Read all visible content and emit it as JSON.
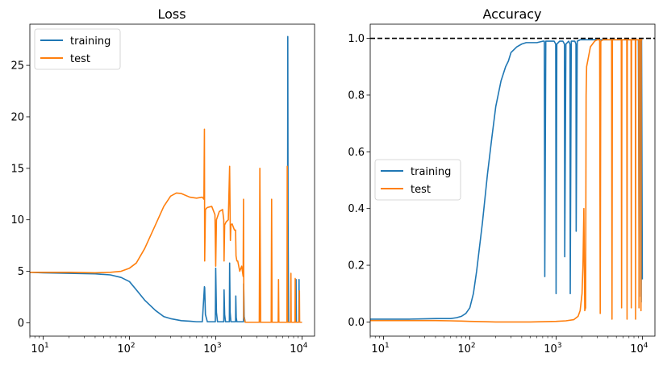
{
  "colors": {
    "training": "#1f77b4",
    "test": "#ff7f0e",
    "reference": "#000000"
  },
  "chart_data": [
    {
      "type": "line",
      "title": "Loss",
      "xscale": "log",
      "xlim": [
        7,
        14000
      ],
      "ylim": [
        -1.3,
        29
      ],
      "grid": false,
      "legend": "top-left",
      "xticks": [
        {
          "value": 10,
          "base": "10",
          "exp": "1"
        },
        {
          "value": 100,
          "base": "10",
          "exp": "2"
        },
        {
          "value": 1000,
          "base": "10",
          "exp": "3"
        },
        {
          "value": 10000,
          "base": "10",
          "exp": "4"
        }
      ],
      "yticks": [
        {
          "value": 0,
          "label": "0"
        },
        {
          "value": 5,
          "label": "5"
        },
        {
          "value": 10,
          "label": "10"
        },
        {
          "value": 15,
          "label": "15"
        },
        {
          "value": 20,
          "label": "20"
        },
        {
          "value": 25,
          "label": "25"
        }
      ],
      "series": [
        {
          "name": "training",
          "color_key": "training",
          "x": [
            7,
            10,
            20,
            40,
            60,
            80,
            100,
            120,
            150,
            200,
            250,
            300,
            400,
            500,
            600,
            700,
            740,
            745,
            760,
            800,
            990,
            1000,
            1020,
            1050,
            1240,
            1250,
            1270,
            1300,
            1440,
            1450,
            1470,
            1500,
            1700,
            1710,
            1730,
            1760,
            2100,
            2110,
            2140,
            2200,
            2500,
            3000,
            4000,
            5000,
            6000,
            6800,
            6850,
            6900,
            7000,
            7500,
            8500,
            8550,
            8600,
            9200,
            9250,
            9300,
            10000
          ],
          "y": [
            4.9,
            4.85,
            4.8,
            4.75,
            4.65,
            4.4,
            4.0,
            3.2,
            2.2,
            1.2,
            0.6,
            0.4,
            0.2,
            0.15,
            0.1,
            0.1,
            3.5,
            3.4,
            0.8,
            0.1,
            0.1,
            5.3,
            1.0,
            0.1,
            0.1,
            3.2,
            0.8,
            0.1,
            0.1,
            5.8,
            1.0,
            0.1,
            0.1,
            2.6,
            0.5,
            0.1,
            0.1,
            3.8,
            0.6,
            0.05,
            0.05,
            0.05,
            0.05,
            0.05,
            0.05,
            0.05,
            27.8,
            10.0,
            0.05,
            0.05,
            0.05,
            4.2,
            0.05,
            0.05,
            4.2,
            0.05,
            0.05
          ]
        },
        {
          "name": "test",
          "color_key": "test",
          "x": [
            7,
            10,
            20,
            40,
            60,
            80,
            100,
            120,
            150,
            200,
            250,
            300,
            350,
            400,
            500,
            600,
            700,
            730,
            740,
            745,
            760,
            800,
            900,
            980,
            1000,
            1020,
            1100,
            1200,
            1240,
            1250,
            1270,
            1320,
            1400,
            1450,
            1480,
            1500,
            1550,
            1650,
            1700,
            1720,
            1760,
            1800,
            1900,
            2000,
            2080,
            2100,
            2120,
            2200,
            2500,
            3000,
            3200,
            3250,
            3320,
            3500,
            4400,
            4450,
            4500,
            4600,
            5300,
            5350,
            5400,
            5800,
            6700,
            6750,
            6800,
            7000,
            7400,
            7450,
            7500,
            8000,
            8300,
            8350,
            8400,
            9000,
            9300,
            9350,
            9400,
            10000
          ],
          "y": [
            4.9,
            4.9,
            4.9,
            4.85,
            4.9,
            5.0,
            5.3,
            5.8,
            7.2,
            9.5,
            11.3,
            12.3,
            12.6,
            12.55,
            12.2,
            12.1,
            12.2,
            12.0,
            18.8,
            6.0,
            11.0,
            11.2,
            11.3,
            10.5,
            5.5,
            10.0,
            10.8,
            11.0,
            10.0,
            6.0,
            9.5,
            9.8,
            10.0,
            15.2,
            8.0,
            9.5,
            9.6,
            9.0,
            9.0,
            6.5,
            6.0,
            6.0,
            5.0,
            5.5,
            4.5,
            12.0,
            0.5,
            0.05,
            0.05,
            0.05,
            0.05,
            15.0,
            0.05,
            0.05,
            0.05,
            12.0,
            0.05,
            0.05,
            0.05,
            4.2,
            0.05,
            0.05,
            0.05,
            15.2,
            0.05,
            0.05,
            0.05,
            4.8,
            0.05,
            0.05,
            0.05,
            4.3,
            0.05,
            0.05,
            0.05,
            3.1,
            0.05,
            0.05
          ]
        }
      ]
    },
    {
      "type": "line",
      "title": "Accuracy",
      "xscale": "log",
      "xlim": [
        7,
        14000
      ],
      "ylim": [
        -0.05,
        1.05
      ],
      "grid": false,
      "legend": "center-left",
      "reference_line": {
        "y": 1.0,
        "style": "dashed"
      },
      "xticks": [
        {
          "value": 10,
          "base": "10",
          "exp": "1"
        },
        {
          "value": 100,
          "base": "10",
          "exp": "2"
        },
        {
          "value": 1000,
          "base": "10",
          "exp": "3"
        },
        {
          "value": 10000,
          "base": "10",
          "exp": "4"
        }
      ],
      "yticks": [
        {
          "value": 0.0,
          "label": "0.0"
        },
        {
          "value": 0.2,
          "label": "0.2"
        },
        {
          "value": 0.4,
          "label": "0.4"
        },
        {
          "value": 0.6,
          "label": "0.6"
        },
        {
          "value": 0.8,
          "label": "0.8"
        },
        {
          "value": 1.0,
          "label": "1.0"
        }
      ],
      "series": [
        {
          "name": "training",
          "color_key": "training",
          "x": [
            7,
            10,
            20,
            40,
            60,
            70,
            80,
            90,
            100,
            110,
            120,
            140,
            160,
            180,
            200,
            230,
            260,
            280,
            300,
            350,
            400,
            450,
            500,
            600,
            700,
            730,
            740,
            760,
            800,
            850,
            950,
            990,
            1000,
            1020,
            1100,
            1200,
            1250,
            1260,
            1300,
            1400,
            1450,
            1460,
            1500,
            1650,
            1700,
            1710,
            1760,
            1900,
            2100,
            2200,
            2500,
            3000,
            4000,
            5000,
            6000,
            7000,
            8000,
            9000,
            9200,
            9300,
            9500,
            9700,
            9800,
            10000
          ],
          "y": [
            0.01,
            0.01,
            0.01,
            0.012,
            0.012,
            0.015,
            0.02,
            0.03,
            0.05,
            0.1,
            0.18,
            0.35,
            0.52,
            0.65,
            0.76,
            0.85,
            0.9,
            0.92,
            0.95,
            0.97,
            0.98,
            0.985,
            0.985,
            0.985,
            0.99,
            0.99,
            0.16,
            0.99,
            0.99,
            0.99,
            0.99,
            0.98,
            0.1,
            0.98,
            0.99,
            0.99,
            0.98,
            0.23,
            0.98,
            0.99,
            0.98,
            0.1,
            0.99,
            0.99,
            0.98,
            0.32,
            0.99,
            0.995,
            0.995,
            0.995,
            0.995,
            0.995,
            0.995,
            0.995,
            0.995,
            0.995,
            0.995,
            0.995,
            0.09,
            0.995,
            0.995,
            0.07,
            0.995,
            0.15
          ]
        },
        {
          "name": "test",
          "color_key": "test",
          "x": [
            7,
            10,
            20,
            40,
            60,
            80,
            100,
            150,
            200,
            300,
            500,
            700,
            1000,
            1300,
            1600,
            1800,
            1900,
            2000,
            2050,
            2100,
            2150,
            2200,
            2230,
            2260,
            2500,
            2800,
            3000,
            3100,
            3200,
            3250,
            3300,
            3500,
            4400,
            4450,
            4500,
            5000,
            5700,
            5750,
            5800,
            6200,
            6600,
            6650,
            6700,
            7000,
            7400,
            7450,
            7500,
            8000,
            8300,
            8350,
            8400,
            8800,
            9100,
            9150,
            9200,
            9600,
            9650,
            9700,
            10000
          ],
          "y": [
            0.005,
            0.005,
            0.005,
            0.005,
            0.004,
            0.003,
            0.002,
            0.001,
            0.0,
            0.0,
            0.0,
            0.001,
            0.002,
            0.004,
            0.008,
            0.02,
            0.04,
            0.1,
            0.2,
            0.4,
            0.04,
            0.05,
            0.8,
            0.9,
            0.97,
            0.99,
            0.995,
            0.995,
            0.995,
            0.03,
            0.99,
            0.995,
            0.995,
            0.01,
            0.995,
            0.995,
            0.995,
            0.05,
            0.995,
            0.995,
            0.995,
            0.01,
            0.995,
            0.995,
            0.995,
            0.05,
            0.995,
            0.995,
            0.995,
            0.01,
            0.995,
            0.995,
            0.995,
            0.05,
            0.995,
            0.995,
            0.04,
            0.995,
            0.995
          ]
        }
      ]
    }
  ]
}
